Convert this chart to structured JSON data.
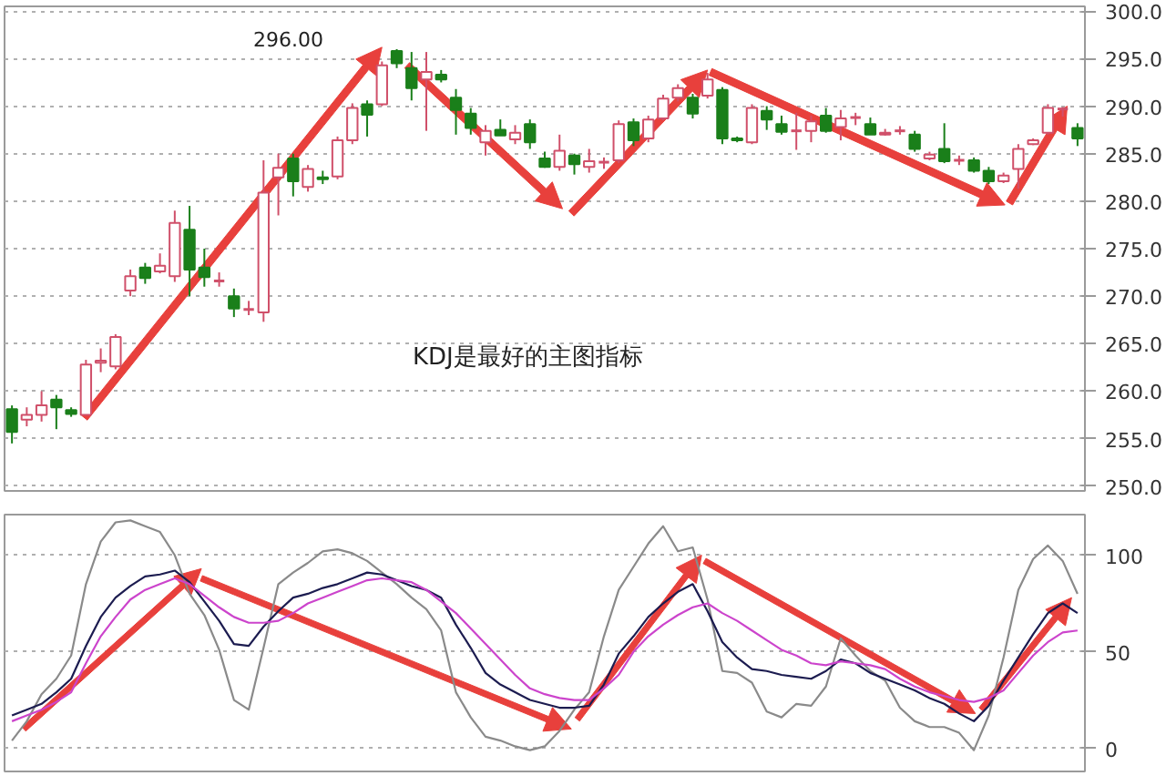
{
  "chart_data": [
    {
      "type": "candlestick",
      "categories": [
        null,
        null,
        null,
        null,
        null,
        null,
        null,
        null,
        null,
        null,
        null,
        null,
        null,
        null,
        null,
        null,
        null,
        null,
        null,
        null,
        null,
        null,
        null,
        null,
        null,
        null,
        null,
        null,
        null,
        null,
        null,
        null,
        null,
        null,
        null,
        null,
        null,
        null,
        null,
        null,
        null,
        null,
        null,
        null,
        null,
        null,
        null,
        null,
        null,
        null,
        null,
        null,
        null,
        null,
        null,
        null,
        null,
        null,
        null,
        null,
        null,
        null,
        null,
        null,
        null,
        null,
        null,
        null,
        null,
        null,
        null,
        null,
        null
      ],
      "ohlc": [
        [
          258.1,
          258.5,
          254.5,
          255.7
        ],
        [
          257.0,
          258.3,
          256.3,
          257.5
        ],
        [
          257.5,
          260.0,
          256.8,
          258.5
        ],
        [
          259.1,
          259.6,
          256.0,
          258.3
        ],
        [
          258.0,
          258.3,
          257.3,
          257.6
        ],
        [
          257.5,
          263.3,
          257.5,
          262.8
        ],
        [
          263.0,
          264.5,
          262.0,
          263.2
        ],
        [
          262.6,
          266.0,
          262.3,
          265.7
        ],
        [
          270.6,
          272.8,
          270.0,
          272.1
        ],
        [
          273.0,
          273.5,
          271.3,
          271.9
        ],
        [
          272.6,
          274.5,
          272.4,
          273.2
        ],
        [
          272.1,
          279.0,
          271.5,
          277.7
        ],
        [
          277.0,
          279.5,
          270.0,
          272.8
        ],
        [
          273.0,
          275.0,
          271.0,
          272.0
        ],
        [
          271.5,
          272.5,
          271.0,
          271.6
        ],
        [
          270.0,
          270.8,
          267.8,
          268.7
        ],
        [
          268.5,
          269.5,
          268.0,
          268.6
        ],
        [
          268.3,
          284.3,
          267.3,
          280.9
        ],
        [
          282.5,
          285.0,
          278.5,
          283.5
        ],
        [
          284.5,
          285.0,
          280.5,
          282.1
        ],
        [
          281.5,
          283.8,
          281.0,
          283.4
        ],
        [
          282.5,
          283.2,
          281.8,
          282.3
        ],
        [
          282.6,
          286.8,
          282.3,
          286.4
        ],
        [
          286.4,
          290.3,
          286.0,
          289.8
        ],
        [
          290.2,
          290.6,
          286.8,
          289.1
        ],
        [
          290.2,
          294.7,
          290.0,
          294.3
        ],
        [
          295.8,
          296.0,
          294.0,
          294.5
        ],
        [
          294.0,
          295.7,
          290.6,
          291.9
        ],
        [
          292.8,
          295.7,
          287.4,
          293.6
        ],
        [
          293.3,
          293.8,
          292.5,
          292.8
        ],
        [
          290.9,
          291.8,
          287.0,
          289.6
        ],
        [
          289.2,
          289.8,
          287.0,
          287.7
        ],
        [
          286.2,
          288.0,
          284.8,
          287.4
        ],
        [
          287.5,
          288.6,
          286.9,
          286.9
        ],
        [
          286.5,
          288.0,
          286.0,
          287.2
        ],
        [
          288.1,
          288.6,
          285.5,
          286.2
        ],
        [
          284.5,
          285.2,
          283.5,
          283.6
        ],
        [
          283.6,
          287.0,
          283.2,
          285.3
        ],
        [
          284.8,
          285.0,
          282.8,
          283.9
        ],
        [
          283.6,
          285.5,
          283.0,
          284.2
        ],
        [
          284.0,
          284.6,
          283.4,
          284.1
        ],
        [
          284.3,
          288.5,
          284.0,
          288.1
        ],
        [
          288.3,
          288.7,
          285.8,
          286.4
        ],
        [
          286.6,
          289.0,
          286.2,
          288.6
        ],
        [
          288.7,
          291.2,
          288.5,
          290.8
        ],
        [
          290.9,
          292.3,
          290.5,
          291.9
        ],
        [
          290.9,
          291.3,
          288.7,
          289.2
        ],
        [
          291.1,
          293.5,
          290.8,
          292.8
        ],
        [
          291.7,
          292.0,
          286.0,
          286.6
        ],
        [
          286.6,
          286.8,
          286.2,
          286.4
        ],
        [
          286.2,
          290.2,
          286.0,
          289.8
        ],
        [
          289.5,
          290.0,
          287.5,
          288.6
        ],
        [
          288.1,
          289.0,
          287.0,
          287.3
        ],
        [
          287.3,
          289.3,
          285.4,
          287.4
        ],
        [
          287.4,
          289.0,
          286.2,
          288.4
        ],
        [
          289.0,
          289.8,
          287.2,
          287.4
        ],
        [
          287.8,
          289.6,
          286.4,
          288.7
        ],
        [
          288.7,
          289.3,
          288.0,
          288.8
        ],
        [
          288.1,
          288.8,
          287.0,
          287.0
        ],
        [
          287.0,
          287.6,
          286.9,
          287.2
        ],
        [
          287.3,
          287.9,
          287.0,
          287.4
        ],
        [
          287.0,
          287.4,
          285.2,
          285.5
        ],
        [
          284.5,
          285.2,
          284.3,
          284.9
        ],
        [
          285.5,
          288.2,
          284.0,
          284.2
        ],
        [
          284.2,
          284.8,
          283.8,
          284.3
        ],
        [
          284.3,
          284.6,
          283.0,
          283.2
        ],
        [
          283.2,
          283.6,
          281.8,
          282.1
        ],
        [
          282.1,
          283.0,
          281.9,
          282.7
        ],
        [
          283.4,
          286.0,
          281.3,
          285.5
        ],
        [
          286.0,
          286.6,
          285.9,
          286.4
        ],
        [
          287.2,
          290.2,
          287.0,
          289.8
        ],
        [
          289.6,
          289.9,
          288.9,
          289.7
        ],
        [
          287.7,
          288.2,
          285.8,
          286.6
        ]
      ],
      "colors": [
        "#1a7f1a",
        "#d0506a",
        "#d0506a",
        "#1a7f1a",
        "#1a7f1a",
        "#d0506a",
        "#d0506a",
        "#d0506a",
        "#d0506a",
        "#1a7f1a",
        "#d0506a",
        "#d0506a",
        "#1a7f1a",
        "#1a7f1a",
        "#d0506a",
        "#1a7f1a",
        "#d0506a",
        "#d0506a",
        "#d0506a",
        "#1a7f1a",
        "#d0506a",
        "#1a7f1a",
        "#d0506a",
        "#d0506a",
        "#1a7f1a",
        "#d0506a",
        "#1a7f1a",
        "#1a7f1a",
        "#d0506a",
        "#1a7f1a",
        "#1a7f1a",
        "#1a7f1a",
        "#d0506a",
        "#1a7f1a",
        "#d0506a",
        "#1a7f1a",
        "#1a7f1a",
        "#d0506a",
        "#1a7f1a",
        "#d0506a",
        "#d0506a",
        "#d0506a",
        "#1a7f1a",
        "#d0506a",
        "#d0506a",
        "#d0506a",
        "#1a7f1a",
        "#d0506a",
        "#1a7f1a",
        "#1a7f1a",
        "#d0506a",
        "#1a7f1a",
        "#1a7f1a",
        "#d0506a",
        "#d0506a",
        "#1a7f1a",
        "#d0506a",
        "#d0506a",
        "#1a7f1a",
        "#d0506a",
        "#d0506a",
        "#1a7f1a",
        "#d0506a",
        "#1a7f1a",
        "#d0506a",
        "#1a7f1a",
        "#1a7f1a",
        "#d0506a",
        "#d0506a",
        "#d0506a",
        "#d0506a",
        "#d0506a",
        "#1a7f1a"
      ],
      "ylim": [
        249.5,
        300.5
      ],
      "yticks": [
        {
          "value": 250,
          "label": "250.0"
        },
        {
          "value": 255,
          "label": "255.0"
        },
        {
          "value": 260,
          "label": "260.0"
        },
        {
          "value": 265,
          "label": "265.0"
        },
        {
          "value": 270,
          "label": "270.0"
        },
        {
          "value": 275,
          "label": "275.0"
        },
        {
          "value": 280,
          "label": "280.0"
        },
        {
          "value": 285,
          "label": "285.0"
        },
        {
          "value": 290,
          "label": "290.0"
        },
        {
          "value": 295,
          "label": "295.0"
        },
        {
          "value": 300,
          "label": "300.0"
        }
      ],
      "grid": "y",
      "tick_labels": "y",
      "annotations": [
        "296.00",
        "KDJ是最好的主图指标"
      ]
    },
    {
      "type": "line",
      "categories": [
        null,
        null,
        null,
        null,
        null,
        null,
        null,
        null,
        null,
        null,
        null,
        null,
        null,
        null,
        null,
        null,
        null,
        null,
        null,
        null,
        null,
        null,
        null,
        null,
        null,
        null,
        null,
        null,
        null,
        null,
        null,
        null,
        null,
        null,
        null,
        null,
        null,
        null,
        null,
        null,
        null,
        null,
        null,
        null,
        null,
        null,
        null,
        null,
        null,
        null,
        null,
        null,
        null,
        null,
        null,
        null,
        null,
        null,
        null,
        null,
        null,
        null,
        null,
        null,
        null,
        null,
        null,
        null,
        null,
        null,
        null,
        null,
        null
      ],
      "ylim": [
        -12,
        121
      ],
      "yticks": [
        0,
        50,
        100
      ],
      "grid": "y",
      "tick_labels": "y",
      "marker": "none",
      "series": [
        {
          "color": "#8a8a8a",
          "values": [
            4,
            14,
            28,
            36,
            48,
            85,
            107,
            117,
            118,
            115,
            112,
            100,
            80,
            69,
            51,
            25,
            20,
            52,
            85,
            91,
            96,
            102,
            103,
            101,
            97,
            91,
            85,
            78,
            72,
            61,
            29,
            16,
            6,
            4,
            1,
            -1,
            1,
            9,
            20,
            29,
            58,
            82,
            94,
            106,
            115,
            102,
            104,
            77,
            40,
            39,
            34,
            19,
            16,
            23,
            22,
            32,
            57,
            48,
            40,
            35,
            21,
            14,
            11,
            11,
            8,
            -1,
            17,
            47,
            82,
            98,
            105,
            97,
            80
          ]
        },
        {
          "color": "#1c1c50",
          "values": [
            17,
            20,
            23,
            29,
            36,
            53,
            68,
            78,
            84,
            89,
            90,
            92,
            86,
            76,
            66,
            54,
            53,
            63,
            71,
            78,
            80,
            83,
            85,
            88,
            91,
            90,
            87,
            84,
            82,
            78,
            64,
            52,
            39,
            33,
            29,
            25,
            23,
            21,
            21,
            22,
            33,
            49,
            58,
            68,
            75,
            81,
            85,
            71,
            55,
            47,
            41,
            40,
            38,
            37,
            36,
            40,
            46,
            44,
            39,
            36,
            33,
            30,
            26,
            23,
            18,
            14,
            22,
            35,
            47,
            59,
            70,
            75,
            70
          ]
        },
        {
          "color": "#cc44cc",
          "values": [
            14,
            17,
            20,
            24,
            29,
            44,
            58,
            68,
            77,
            82,
            85,
            88,
            85,
            79,
            73,
            68,
            65,
            65,
            66,
            70,
            75,
            78,
            81,
            84,
            87,
            88,
            87,
            86,
            82,
            76,
            70,
            62,
            54,
            46,
            38,
            31,
            28,
            26,
            25,
            25,
            31,
            38,
            50,
            58,
            64,
            69,
            73,
            75,
            70,
            66,
            61,
            56,
            51,
            48,
            44,
            43,
            45,
            44,
            43,
            41,
            36,
            32,
            29,
            27,
            25,
            24,
            26,
            30,
            39,
            48,
            55,
            60,
            61
          ]
        }
      ]
    }
  ]
}
